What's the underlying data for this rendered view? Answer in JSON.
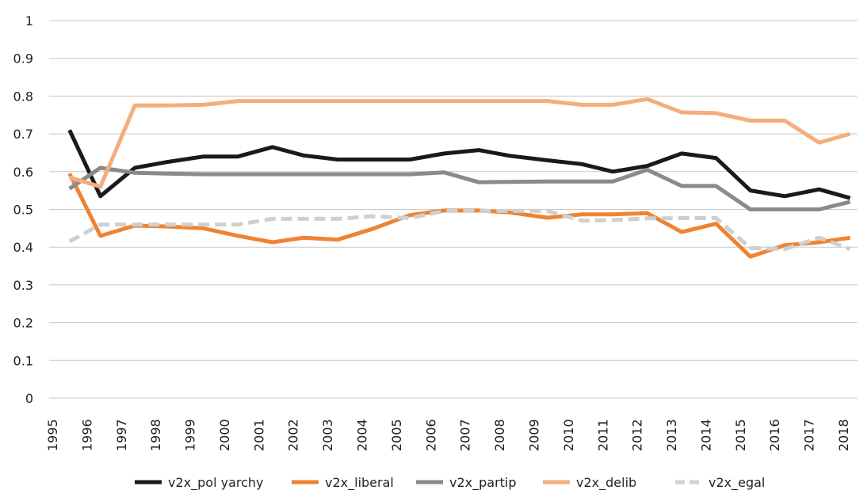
{
  "chart_data": {
    "type": "line",
    "title": "",
    "xlabel": "",
    "ylabel": "",
    "ylim": [
      0,
      1
    ],
    "y_ticks": [
      "0",
      "0.1",
      "0.2",
      "0.3",
      "0.4",
      "0.5",
      "0.6",
      "0.7",
      "0.8",
      "0.9",
      "1"
    ],
    "x_tick_labels": [
      "1995",
      "1996",
      "1997",
      "1998",
      "1999",
      "2000",
      "2001",
      "2002",
      "2003",
      "2004",
      "2005",
      "2006",
      "2007",
      "2008",
      "2009",
      "2010",
      "2011",
      "2012",
      "2013",
      "2014",
      "2015",
      "2016",
      "2017",
      "2018"
    ],
    "x_range": [
      1995,
      2018
    ],
    "legend_position": "bottom",
    "grid": true,
    "series": [
      {
        "name": "v2x_pol yarchy",
        "color": "#1a1a1a",
        "dashed": false,
        "x": [
          1995.5,
          1996.4,
          1997.4,
          1998.3,
          1999.4,
          2000.4,
          2001.4,
          2002.3,
          2003.3,
          2004.3,
          2005.4,
          2006.4,
          2007.4,
          2008.3,
          2009.4,
          2010.4,
          2011.3,
          2012.3,
          2013.3,
          2014.3,
          2015.3,
          2016.3,
          2017.3,
          2018.2
        ],
        "y": [
          0.71,
          0.535,
          0.61,
          0.625,
          0.64,
          0.64,
          0.665,
          0.643,
          0.632,
          0.632,
          0.632,
          0.648,
          0.657,
          0.642,
          0.63,
          0.62,
          0.6,
          0.615,
          0.648,
          0.636,
          0.55,
          0.535,
          0.553,
          0.53
        ]
      },
      {
        "name": "v2x_liberal",
        "color": "#ee8433",
        "dashed": false,
        "x": [
          1995.5,
          1996.4,
          1997.4,
          1998.3,
          1999.4,
          2000.4,
          2001.4,
          2002.3,
          2003.3,
          2004.3,
          2005.4,
          2006.4,
          2007.4,
          2008.3,
          2009.4,
          2010.4,
          2011.3,
          2012.3,
          2013.3,
          2014.3,
          2015.3,
          2016.3,
          2017.3,
          2018.2
        ],
        "y": [
          0.595,
          0.43,
          0.457,
          0.455,
          0.45,
          0.43,
          0.413,
          0.425,
          0.42,
          0.448,
          0.485,
          0.497,
          0.497,
          0.492,
          0.478,
          0.487,
          0.487,
          0.49,
          0.44,
          0.462,
          0.375,
          0.405,
          0.413,
          0.425
        ]
      },
      {
        "name": "v2x_partip",
        "color": "#8a8a8a",
        "dashed": false,
        "x": [
          1995.5,
          1996.4,
          1997.4,
          1998.3,
          1999.4,
          2000.4,
          2001.4,
          2002.3,
          2003.3,
          2004.3,
          2005.4,
          2006.4,
          2007.4,
          2008.3,
          2009.4,
          2010.4,
          2011.3,
          2012.3,
          2013.3,
          2014.3,
          2015.3,
          2016.3,
          2017.3,
          2018.2
        ],
        "y": [
          0.555,
          0.61,
          0.597,
          0.595,
          0.593,
          0.593,
          0.593,
          0.593,
          0.593,
          0.593,
          0.593,
          0.598,
          0.572,
          0.573,
          0.574,
          0.574,
          0.574,
          0.605,
          0.562,
          0.562,
          0.5,
          0.5,
          0.5,
          0.52
        ]
      },
      {
        "name": "v2x_delib",
        "color": "#f3ae7c",
        "dashed": false,
        "x": [
          1995.5,
          1996.4,
          1997.4,
          1998.3,
          1999.4,
          2000.4,
          2001.4,
          2002.3,
          2003.3,
          2004.3,
          2005.4,
          2006.4,
          2007.4,
          2008.3,
          2009.4,
          2010.4,
          2011.3,
          2012.3,
          2013.3,
          2014.3,
          2015.3,
          2016.3,
          2017.3,
          2018.2
        ],
        "y": [
          0.585,
          0.56,
          0.775,
          0.775,
          0.777,
          0.787,
          0.787,
          0.787,
          0.787,
          0.787,
          0.787,
          0.787,
          0.787,
          0.787,
          0.787,
          0.777,
          0.777,
          0.792,
          0.757,
          0.755,
          0.735,
          0.735,
          0.677,
          0.7
        ]
      },
      {
        "name": "v2x_egal",
        "color": "#cfcfcf",
        "dashed": true,
        "x": [
          1995.5,
          1996.4,
          1997.4,
          1998.3,
          1999.4,
          2000.4,
          2001.4,
          2002.3,
          2003.3,
          2004.3,
          2005.4,
          2006.4,
          2007.4,
          2008.3,
          2009.4,
          2010.4,
          2011.3,
          2012.3,
          2013.3,
          2014.3,
          2015.3,
          2016.3,
          2017.3,
          2018.2
        ],
        "y": [
          0.415,
          0.46,
          0.46,
          0.46,
          0.46,
          0.46,
          0.475,
          0.475,
          0.475,
          0.482,
          0.477,
          0.496,
          0.496,
          0.496,
          0.496,
          0.47,
          0.472,
          0.476,
          0.477,
          0.477,
          0.398,
          0.395,
          0.425,
          0.395
        ]
      }
    ]
  }
}
